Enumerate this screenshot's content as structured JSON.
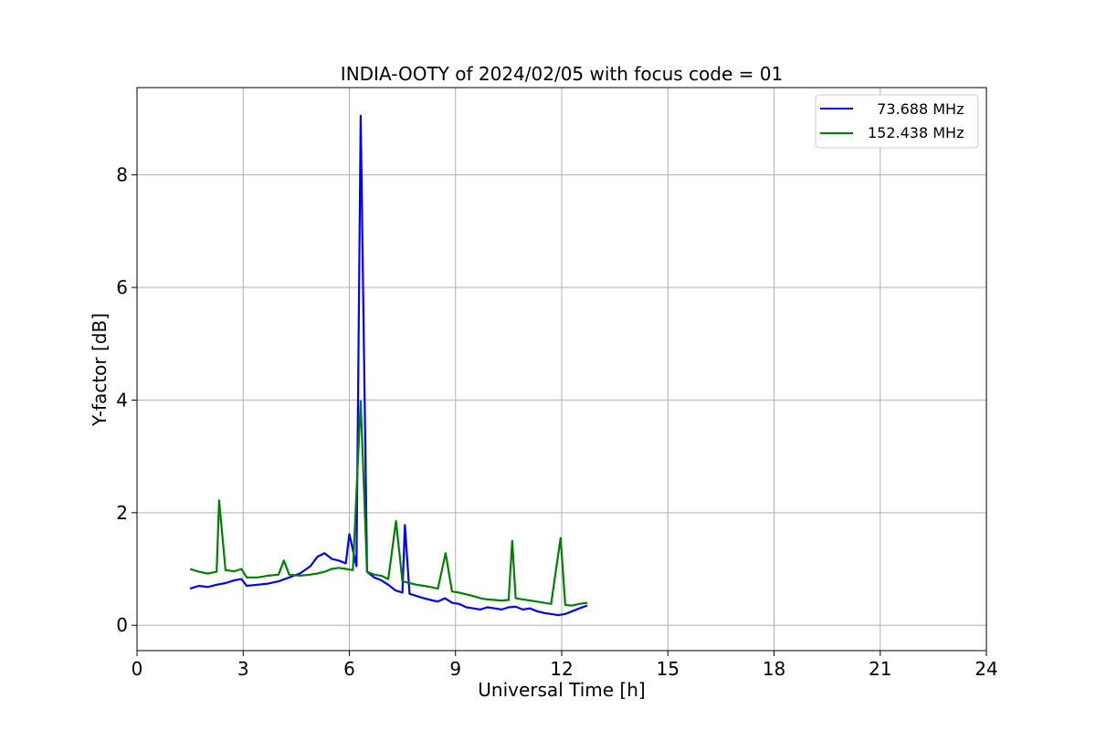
{
  "chart_data": {
    "type": "line",
    "title": "INDIA-OOTY of 2024/02/05 with focus code = 01",
    "xlabel": "Universal Time [h]",
    "ylabel": "Y-factor [dB]",
    "xlim": [
      0,
      24
    ],
    "ylim": [
      -0.45,
      9.55
    ],
    "xticks": [
      0,
      3,
      6,
      9,
      12,
      15,
      18,
      21,
      24
    ],
    "yticks": [
      0,
      2,
      4,
      6,
      8
    ],
    "grid": true,
    "legend_position": "top-right",
    "series": [
      {
        "name": "  73.688 MHz",
        "color": "#0000ff",
        "x": [
          1.5,
          1.75,
          2.0,
          2.25,
          2.5,
          2.75,
          2.95,
          3.1,
          3.4,
          3.7,
          4.0,
          4.3,
          4.6,
          4.9,
          5.1,
          5.3,
          5.5,
          5.7,
          5.9,
          6.0,
          6.2,
          6.32,
          6.5,
          6.7,
          6.9,
          7.1,
          7.3,
          7.5,
          7.57,
          7.7,
          7.9,
          8.1,
          8.3,
          8.5,
          8.7,
          8.9,
          9.1,
          9.3,
          9.5,
          9.7,
          9.9,
          10.1,
          10.3,
          10.5,
          10.7,
          10.9,
          11.1,
          11.3,
          11.5,
          11.7,
          11.9,
          12.1,
          12.3,
          12.5,
          12.72
        ],
        "y": [
          0.65,
          0.7,
          0.68,
          0.72,
          0.75,
          0.8,
          0.82,
          0.7,
          0.72,
          0.74,
          0.78,
          0.85,
          0.92,
          1.05,
          1.22,
          1.28,
          1.18,
          1.15,
          1.1,
          1.62,
          1.05,
          9.05,
          0.95,
          0.85,
          0.8,
          0.72,
          0.62,
          0.58,
          1.78,
          0.56,
          0.52,
          0.48,
          0.45,
          0.42,
          0.48,
          0.4,
          0.38,
          0.32,
          0.3,
          0.28,
          0.32,
          0.3,
          0.28,
          0.32,
          0.33,
          0.28,
          0.3,
          0.25,
          0.22,
          0.2,
          0.18,
          0.2,
          0.25,
          0.3,
          0.35
        ]
      },
      {
        "name": "152.438 MHz",
        "color": "#008000",
        "x": [
          1.5,
          1.75,
          2.0,
          2.25,
          2.32,
          2.5,
          2.75,
          2.95,
          3.1,
          3.4,
          3.7,
          4.0,
          4.15,
          4.3,
          4.6,
          4.9,
          5.1,
          5.3,
          5.5,
          5.7,
          5.9,
          6.1,
          6.32,
          6.5,
          6.7,
          6.9,
          7.1,
          7.32,
          7.5,
          7.7,
          7.9,
          8.1,
          8.3,
          8.5,
          8.72,
          8.9,
          9.1,
          9.3,
          9.5,
          9.7,
          9.9,
          10.1,
          10.3,
          10.5,
          10.6,
          10.7,
          10.9,
          11.1,
          11.3,
          11.5,
          11.7,
          11.97,
          12.1,
          12.3,
          12.5,
          12.72
        ],
        "y": [
          1.0,
          0.95,
          0.92,
          0.95,
          2.22,
          0.98,
          0.96,
          1.0,
          0.85,
          0.85,
          0.88,
          0.9,
          1.15,
          0.9,
          0.88,
          0.9,
          0.92,
          0.95,
          1.0,
          1.02,
          1.0,
          0.98,
          3.98,
          0.95,
          0.9,
          0.88,
          0.82,
          1.85,
          0.78,
          0.75,
          0.72,
          0.7,
          0.68,
          0.65,
          1.28,
          0.6,
          0.58,
          0.55,
          0.52,
          0.48,
          0.46,
          0.45,
          0.44,
          0.45,
          1.5,
          0.48,
          0.46,
          0.44,
          0.42,
          0.4,
          0.38,
          1.55,
          0.36,
          0.35,
          0.38,
          0.4
        ]
      }
    ]
  }
}
